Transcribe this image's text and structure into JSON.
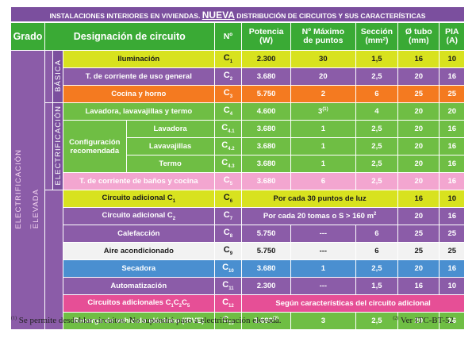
{
  "banner": {
    "before": "INSTALACIONES INTERIORES EN VIVIENDAS.",
    "highlight": "NUEVA",
    "after": "DISTRIBUCIÓN DE CIRCUITOS Y SUS CARACTERÍSTICAS"
  },
  "headers": {
    "grado": "Grado",
    "designacion": "Designación de circuito",
    "num": "Nº",
    "potencia": "Potencia",
    "potencia_unit": "(W)",
    "max_puntos": "Nº Máximo",
    "max_puntos2": "de puntos",
    "seccion": "Sección",
    "seccion_unit": "(mm²)",
    "tubo": "Ø tubo",
    "tubo_unit": "(mm)",
    "pia": "PIA",
    "pia_unit": "(A)"
  },
  "grades": {
    "electrificacion": "ELECTRIFICACIÓN",
    "elevada": "ELEVADA",
    "basica": "BÁSICA",
    "electrificacion_basica": "ELECTRIFICACIÓN"
  },
  "subgroup": {
    "label": "Configuración recomendada"
  },
  "rows": [
    {
      "name": "Iluminación",
      "c": "C",
      "sub": "1",
      "pot": "2.300",
      "max": "30",
      "sec": "1,5",
      "tubo": "16",
      "pia": "10",
      "color": "#d8e21f",
      "fg": "#1a1a1a"
    },
    {
      "name": "T. de corriente de uso general",
      "c": "C",
      "sub": "2",
      "pot": "3.680",
      "max": "20",
      "sec": "2,5",
      "tubo": "20",
      "pia": "16",
      "color": "#8b5ca8",
      "fg": "#ffffff"
    },
    {
      "name": "Cocina y horno",
      "c": "C",
      "sub": "3",
      "pot": "5.750",
      "max": "2",
      "sec": "6",
      "tubo": "25",
      "pia": "25",
      "color": "#f47a20",
      "fg": "#ffffff"
    },
    {
      "name": "Lavadora, lavavajillas y termo",
      "c": "C",
      "sub": "4",
      "pot": "4.600",
      "max": "3",
      "maxsup": "(1)",
      "sec": "4",
      "tubo": "20",
      "pia": "20",
      "color": "#6fbe44",
      "fg": "#ffffff"
    },
    {
      "name": "Lavadora",
      "c": "C",
      "sub": "4.1",
      "pot": "3.680",
      "max": "1",
      "sec": "2,5",
      "tubo": "20",
      "pia": "16",
      "color": "#6fbe44",
      "fg": "#ffffff"
    },
    {
      "name": "Lavavajillas",
      "c": "C",
      "sub": "4.2",
      "pot": "3.680",
      "max": "1",
      "sec": "2,5",
      "tubo": "20",
      "pia": "16",
      "color": "#6fbe44",
      "fg": "#ffffff"
    },
    {
      "name": "Termo",
      "c": "C",
      "sub": "4.3",
      "pot": "3.680",
      "max": "1",
      "sec": "2,5",
      "tubo": "20",
      "pia": "16",
      "color": "#6fbe44",
      "fg": "#ffffff"
    },
    {
      "name": "T. de corriente de baños y cocina",
      "c": "C",
      "sub": "5",
      "pot": "3.680",
      "max": "6",
      "sec": "2,5",
      "tubo": "20",
      "pia": "16",
      "color": "#f3a6d0",
      "fg": "#ffffff"
    },
    {
      "name": "Circuito adicional C",
      "namesub": "1",
      "c": "C",
      "sub": "6",
      "merged": "Por cada 30 puntos de luz",
      "tubo": "16",
      "pia": "10",
      "color": "#d8e21f",
      "fg": "#1a1a1a"
    },
    {
      "name": "Circuito adicional C",
      "namesub": "2",
      "c": "C",
      "sub": "7",
      "merged": "Por cada 20 tomas o S > 160 m²",
      "tubo": "20",
      "pia": "16",
      "color": "#8b5ca8",
      "fg": "#ffffff"
    },
    {
      "name": "Calefacción",
      "c": "C",
      "sub": "8",
      "pot": "5.750",
      "max": "---",
      "sec": "6",
      "tubo": "25",
      "pia": "25",
      "color": "#8b5ca8",
      "fg": "#ffffff"
    },
    {
      "name": "Aire acondicionado",
      "c": "C",
      "sub": "9",
      "pot": "5.750",
      "max": "---",
      "sec": "6",
      "tubo": "25",
      "pia": "25",
      "color": "#f2f2f2",
      "fg": "#1a1a1a"
    },
    {
      "name": "Secadora",
      "c": "C",
      "sub": "10",
      "pot": "3.680",
      "max": "1",
      "sec": "2,5",
      "tubo": "20",
      "pia": "16",
      "color": "#4a8fd0",
      "fg": "#ffffff"
    },
    {
      "name": "Automatización",
      "c": "C",
      "sub": "11",
      "pot": "2.300",
      "max": "---",
      "sec": "1,5",
      "tubo": "16",
      "pia": "10",
      "color": "#8b5ca8",
      "fg": "#ffffff"
    },
    {
      "name": "Circuitos adicionales C",
      "namesub": "1",
      "namemid": "C",
      "namesub2": "2",
      "namemid2": "C",
      "namesub3": "5",
      "c": "C",
      "sub": "12",
      "merged": "Según características del circuito adicional",
      "color": "#e64f96",
      "fg": "#ffffff"
    },
    {
      "name": "Recarga de vehículo eléctrico (IRVE)",
      "c": "C",
      "sub": "13",
      "pot": "3.680",
      "potsup": "(2)",
      "max": "3",
      "sec": "2,5",
      "tubo": "20",
      "pia": "16",
      "color": "#6fbe44",
      "fg": "#ffffff"
    }
  ],
  "footnotes": {
    "n1_mark": "(1)",
    "n1": "Se permite desdoblar circuitos. No supondrá paso a electrificación elevada.",
    "n2_mark": "(2)",
    "n2": "Ver ITC-BT-52"
  }
}
